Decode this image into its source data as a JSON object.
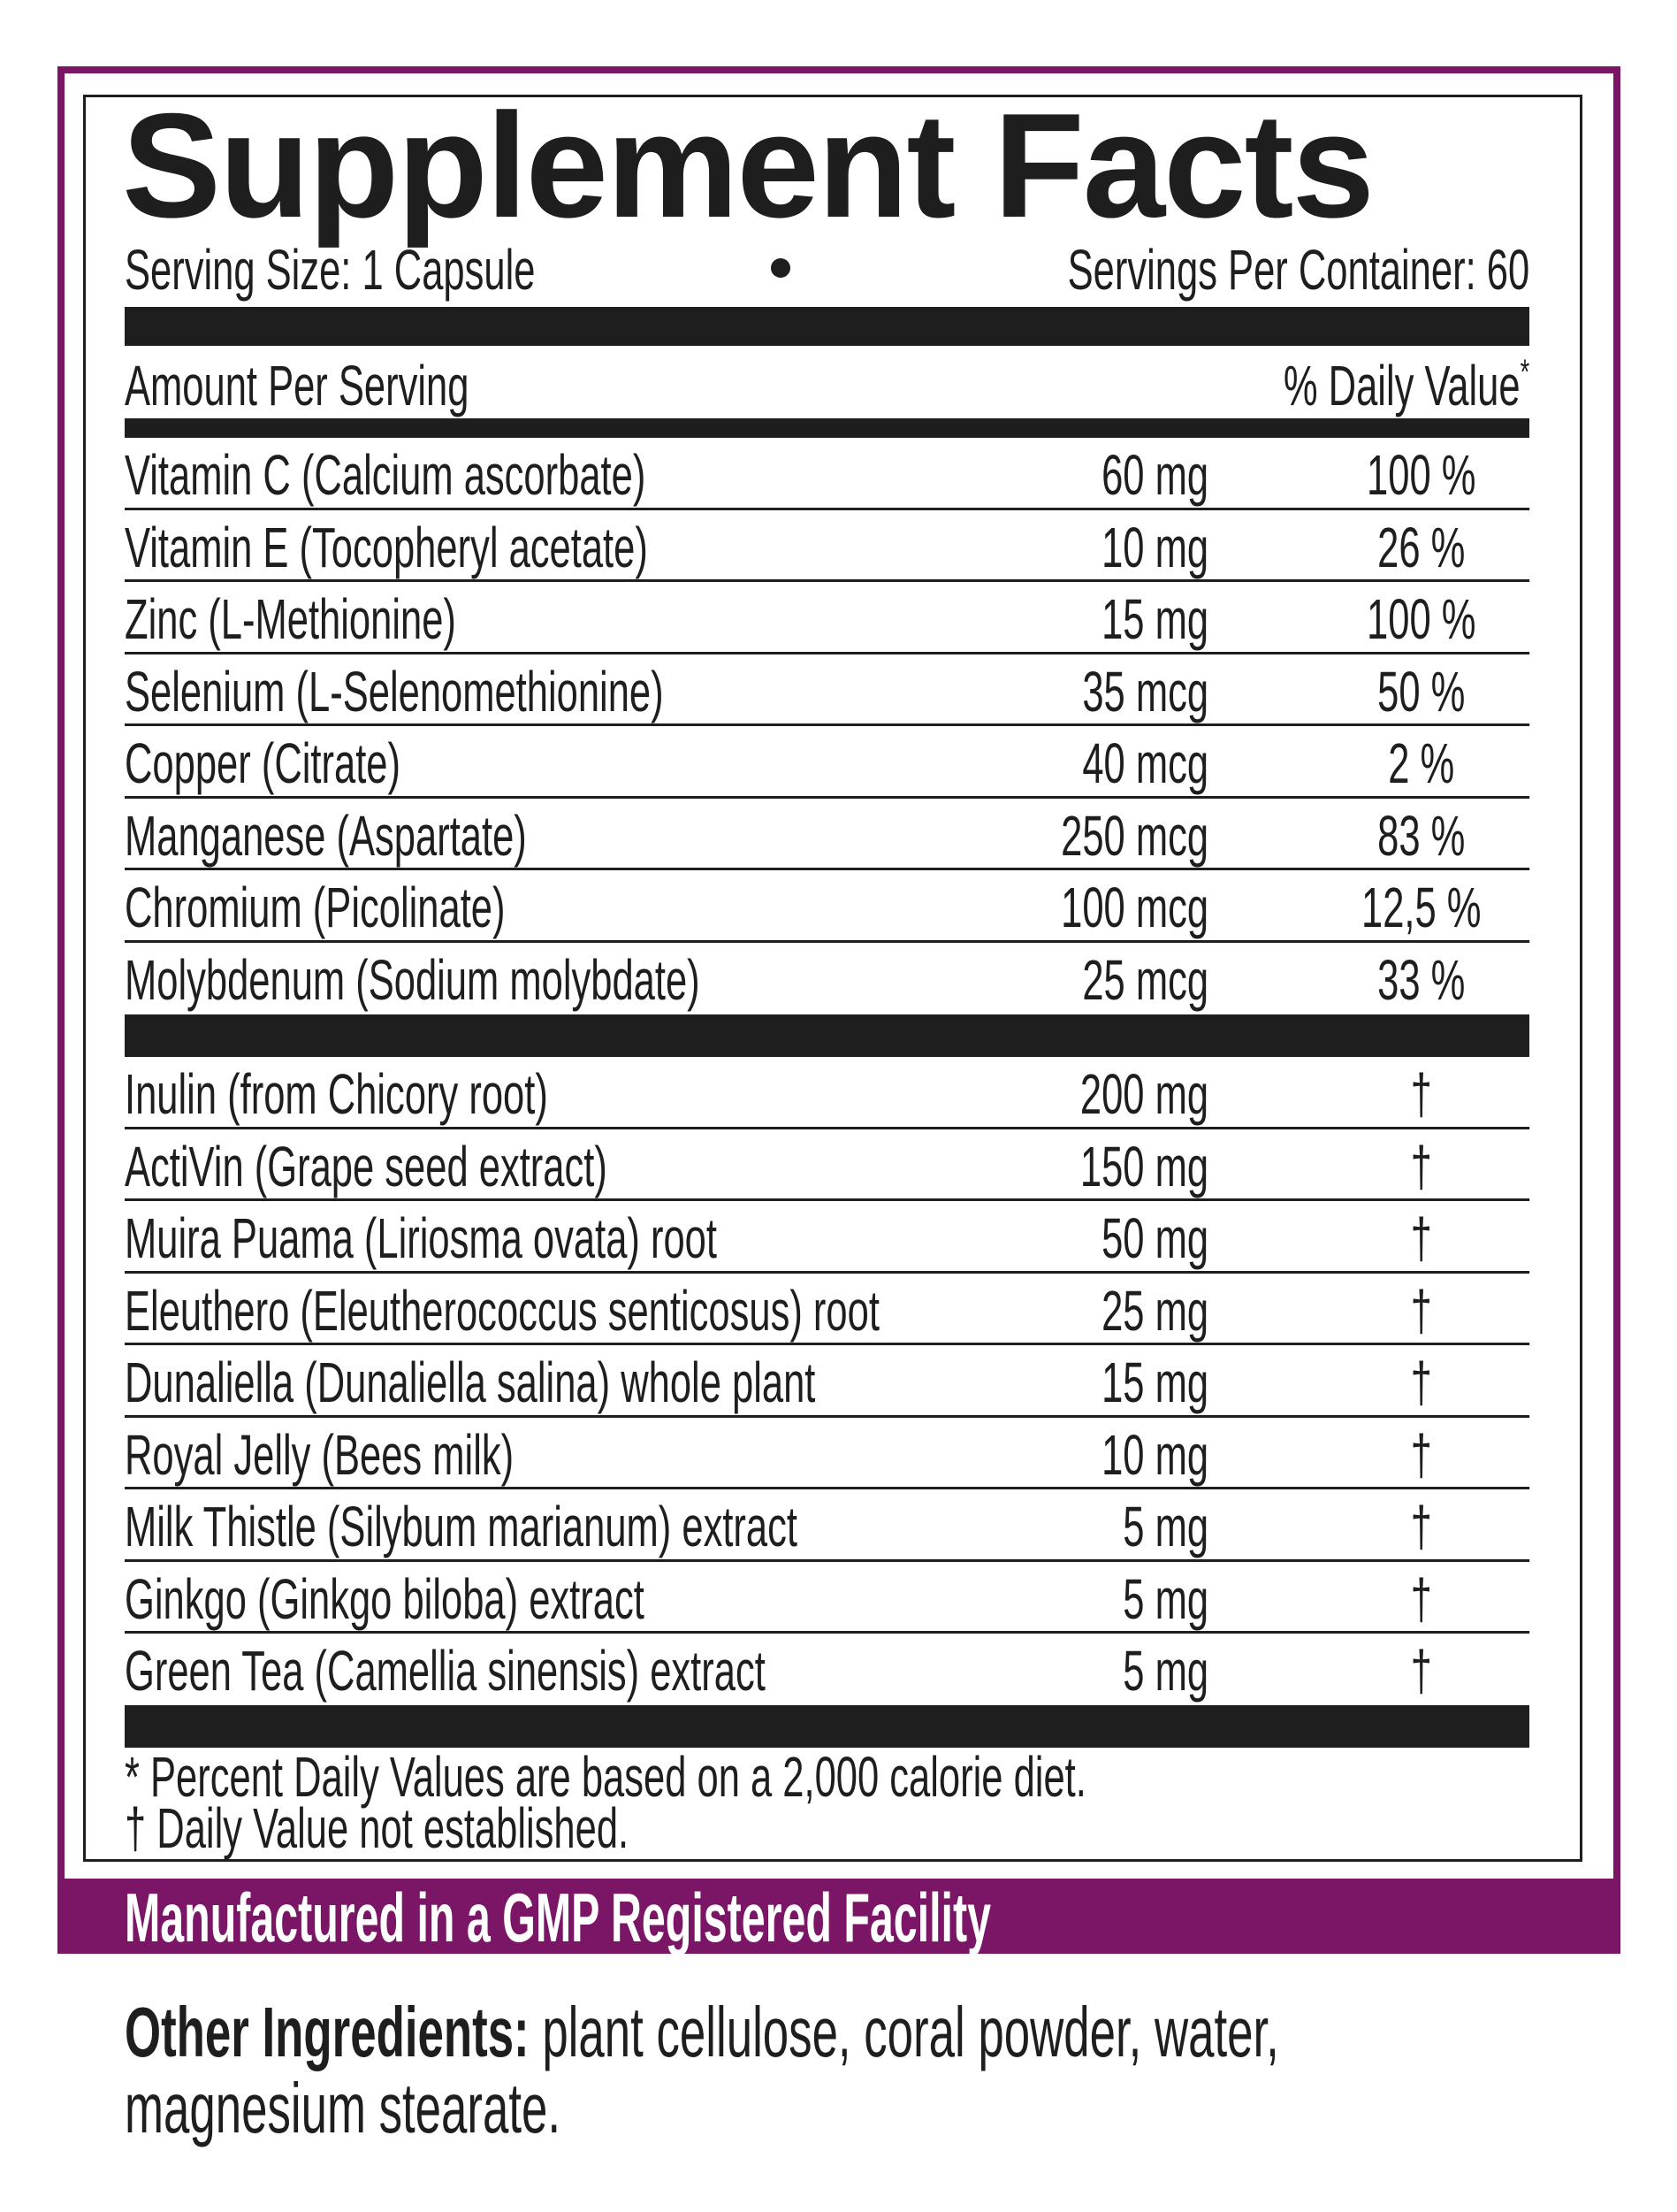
{
  "title": "Supplement Facts",
  "serving_size": "Serving Size: 1 Capsule",
  "servings_per_container": "Servings Per Container: 60",
  "header": {
    "amount": "Amount Per Serving",
    "daily_value": "% Daily Value",
    "daily_value_mark": "*"
  },
  "vitamins": [
    {
      "name": "Vitamin C (Calcium ascorbate)",
      "amount": "60 mg",
      "dv": "100 %"
    },
    {
      "name": "Vitamin E (Tocopheryl acetate)",
      "amount": "10 mg",
      "dv": "26 %"
    },
    {
      "name": "Zinc (L-Methionine)",
      "amount": "15 mg",
      "dv": "100 %"
    },
    {
      "name": "Selenium (L-Selenomethionine)",
      "amount": "35 mcg",
      "dv": "50 %"
    },
    {
      "name": "Copper (Citrate)",
      "amount": "40 mcg",
      "dv": "2 %"
    },
    {
      "name": "Manganese (Aspartate)",
      "amount": "250 mcg",
      "dv": "83 %"
    },
    {
      "name": "Chromium (Picolinate)",
      "amount": "100 mcg",
      "dv": "12,5 %"
    },
    {
      "name": "Molybdenum (Sodium molybdate)",
      "amount": "25 mcg",
      "dv": "33 %"
    }
  ],
  "botanicals": [
    {
      "name": "Inulin (from Chicory root)",
      "amount": "200 mg",
      "dv": "†"
    },
    {
      "name": "ActiVin (Grape seed extract)",
      "amount": "150 mg",
      "dv": "†"
    },
    {
      "name": "Muira Puama (Liriosma ovata) root",
      "amount": "50 mg",
      "dv": "†"
    },
    {
      "name": "Eleuthero (Eleutherococcus senticosus) root",
      "amount": "25 mg",
      "dv": "†"
    },
    {
      "name": "Dunaliella (Dunaliella salina) whole plant",
      "amount": "15 mg",
      "dv": "†"
    },
    {
      "name": "Royal Jelly (Bees milk)",
      "amount": "10 mg",
      "dv": "†"
    },
    {
      "name": "Milk Thistle (Silybum marianum) extract",
      "amount": "5 mg",
      "dv": "†"
    },
    {
      "name": "Ginkgo (Ginkgo biloba) extract",
      "amount": "5 mg",
      "dv": "†"
    },
    {
      "name": "Green Tea (Camellia sinensis) extract",
      "amount": "5 mg",
      "dv": "†"
    }
  ],
  "footnotes": [
    "* Percent Daily Values are based on a 2,000 calorie diet.",
    "† Daily Value not established."
  ],
  "band_text": "Manufactured in a GMP Registered Facility",
  "other_ingredients": {
    "label": "Other Ingredients:",
    "text": " plant cellulose, coral powder, water, magnesium stearate."
  },
  "colors": {
    "brand_purple": "#7b1566",
    "ink": "#1e1e1e"
  }
}
